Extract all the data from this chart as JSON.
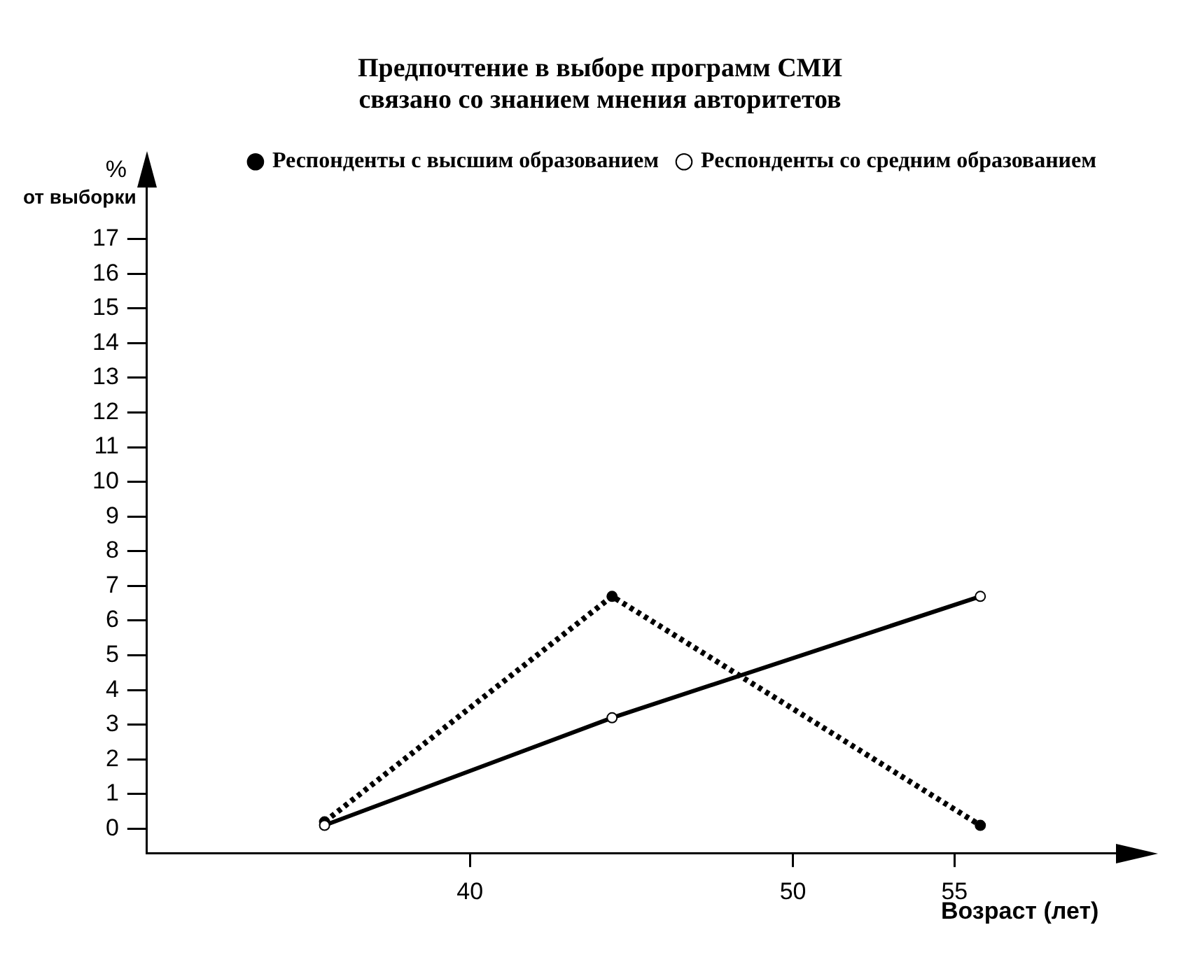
{
  "chart_data": {
    "type": "line",
    "title": "Предпочтение в выборе программ СМИ\nсвязано со знанием мнения авторитетов",
    "xlabel": "Возраст (лет)",
    "ylabel": "%\nот выборки",
    "x": [
      35.5,
      44.4,
      55.8
    ],
    "series": [
      {
        "name": "Респонденты с высшим образованием",
        "color": "#000000",
        "values": [
          0.2,
          6.7,
          0.1
        ],
        "line_style": "dotted",
        "marker": "circle"
      },
      {
        "name": "Респонденты со средним образованием",
        "color": "#000000",
        "values": [
          0.1,
          3.2,
          6.7
        ],
        "line_style": "solid",
        "marker": "circle"
      }
    ],
    "xlim": [
      30,
      60
    ],
    "xticks": [
      40,
      50,
      55
    ],
    "ylim": [
      -0.7,
      18.5
    ],
    "yticks": [
      0,
      1,
      2,
      3,
      4,
      5,
      6,
      7,
      8,
      9,
      10,
      11,
      12,
      13,
      14,
      15,
      16,
      17
    ],
    "grid": false,
    "legend": "top right"
  }
}
